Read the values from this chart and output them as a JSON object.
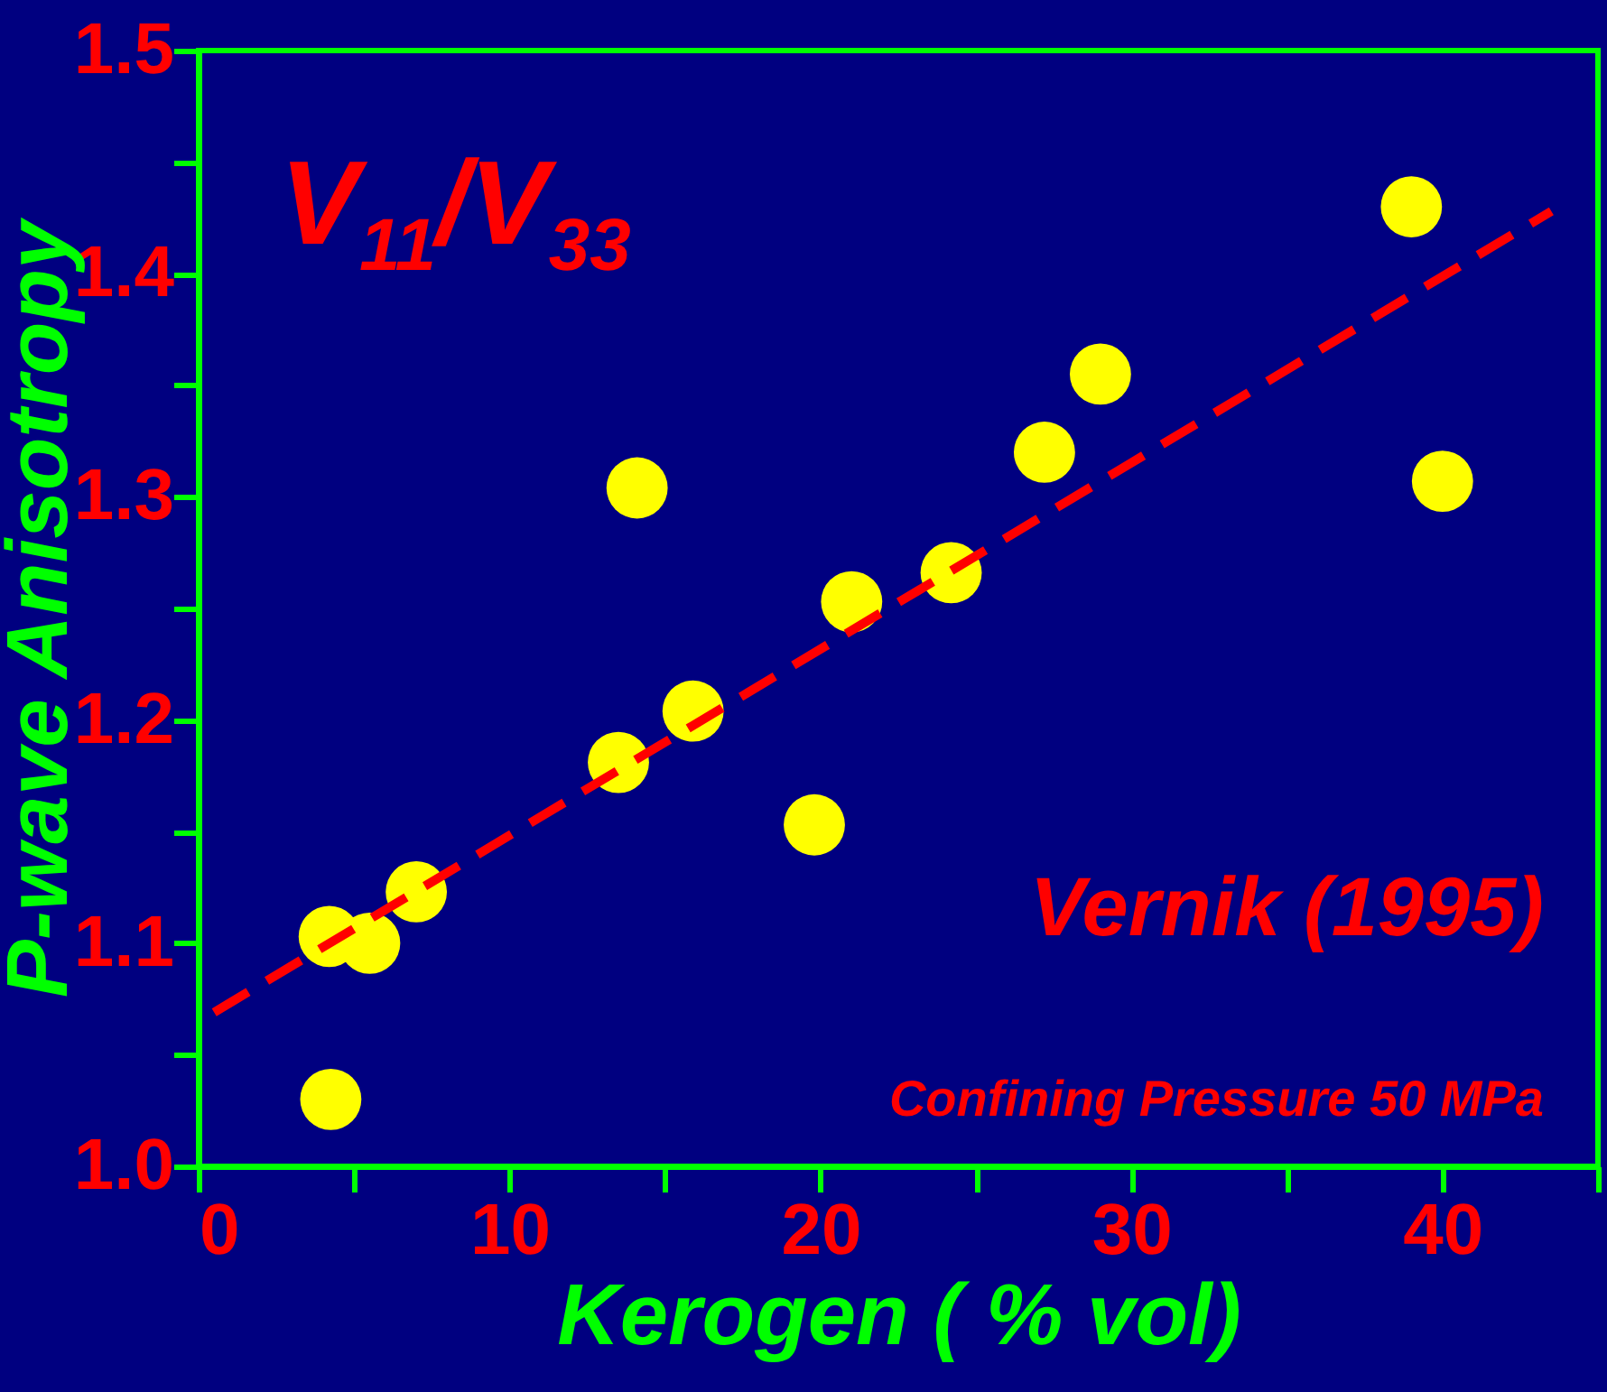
{
  "chart_data": {
    "type": "scatter",
    "xlabel": "Kerogen ( % vol)",
    "ylabel": "P-wave Anisotropy",
    "annotations": [
      "V$_{11}$/V$_{33}$",
      "Vernik (1995)",
      "Confining Pressure 50 MPa"
    ],
    "series": [
      {
        "color": "#ffff00",
        "marker": "circle",
        "x": [
          4.2,
          5.5,
          4.25,
          7.0,
          13.5,
          14.1,
          15.9,
          19.8,
          21.0,
          24.2,
          27.2,
          29.0,
          39.0,
          40.0
        ],
        "values": [
          1.103,
          1.1,
          1.03,
          1.123,
          1.181,
          1.304,
          1.204,
          1.153,
          1.253,
          1.266,
          1.32,
          1.355,
          1.43,
          1.307
        ]
      },
      {
        "type": "line",
        "color": "#ff0000",
        "line_style": "dashed",
        "x": [
          0.5,
          43.5
        ],
        "values": [
          1.069,
          1.428
        ]
      }
    ],
    "xlim": [
      0,
      45
    ],
    "ylim": [
      1.0,
      1.5
    ],
    "xticks": [
      0,
      {
        "value": 5,
        "label": null
      },
      10,
      {
        "value": 15,
        "label": null
      },
      20,
      {
        "value": 25,
        "label": null
      },
      30,
      {
        "value": 35,
        "label": null
      },
      40,
      {
        "value": 45,
        "label": null
      }
    ],
    "yticks": [
      {
        "value": 1.0,
        "label": "1.0"
      },
      {
        "value": 1.05,
        "label": null
      },
      1.1,
      {
        "value": 1.15,
        "label": null
      },
      1.2,
      {
        "value": 1.25,
        "label": null
      },
      1.3,
      {
        "value": 1.35,
        "label": null
      },
      1.4,
      {
        "value": 1.45,
        "label": null
      },
      1.5
    ],
    "grid": false
  }
}
